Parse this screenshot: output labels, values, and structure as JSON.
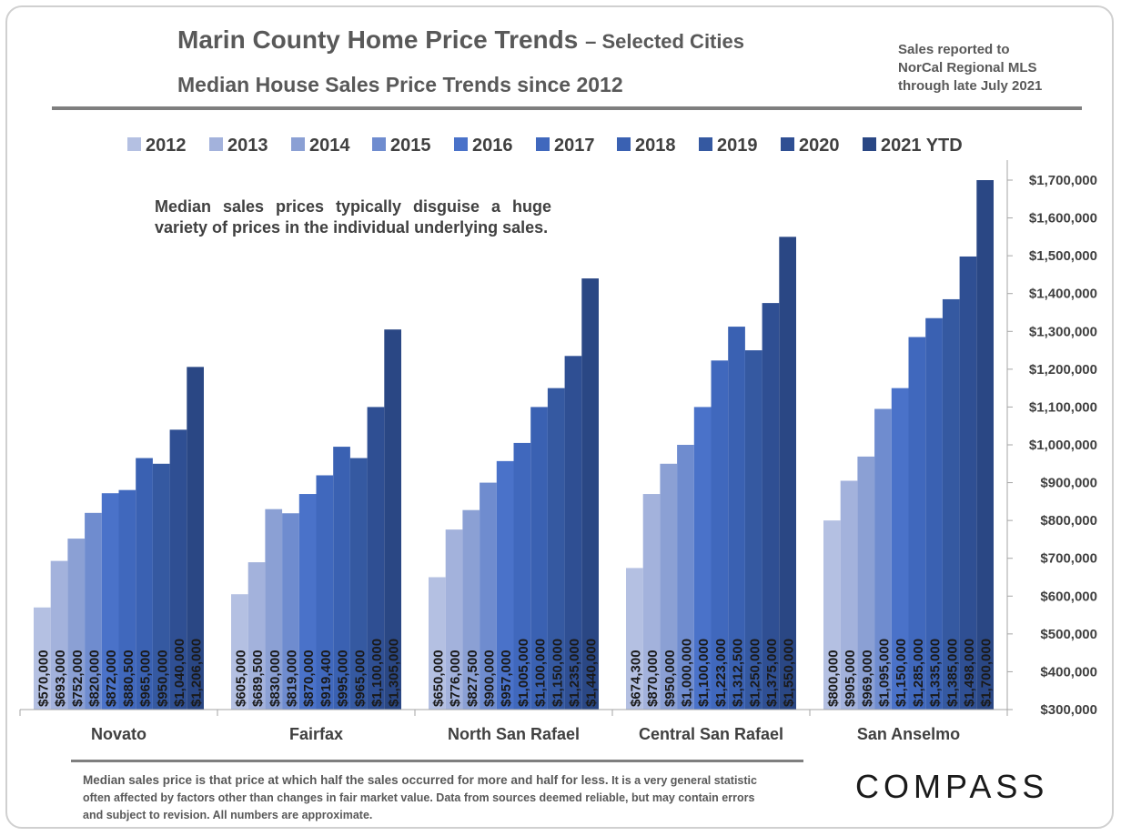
{
  "header": {
    "title": "Marin County Home Price Trends",
    "title_suffix": "– Selected Cities",
    "subtitle": "Median House Sales Price Trends since 2012",
    "source_note": [
      "Sales reported to",
      "NorCal Regional MLS",
      "through late July 2021"
    ]
  },
  "annotation": "Median sales prices typically disguise a huge variety of prices in the individual underlying sales.",
  "footnote": {
    "lead": "Median sales price is that price at which half the sales occurred for more and half for less.",
    "rest": " It is a very general statistic often affected by factors other than changes in fair market value. Data from sources deemed reliable, but may contain errors and subject to revision. All numbers are approximate."
  },
  "logo": {
    "text": "COMPASS"
  },
  "chart_data": {
    "type": "bar",
    "title": "Median House Sales Price Trends since 2012",
    "categories": [
      "Novato",
      "Fairfax",
      "North San Rafael",
      "Central San Rafael",
      "San Anselmo"
    ],
    "legend_position": "top",
    "y_axis_position": "right",
    "ylim": [
      300000,
      1700000
    ],
    "y_ticks": [
      300000,
      400000,
      500000,
      600000,
      700000,
      800000,
      900000,
      1000000,
      1100000,
      1200000,
      1300000,
      1400000,
      1500000,
      1600000,
      1700000
    ],
    "y_tick_labels": [
      "$300,000",
      "$400,000",
      "$500,000",
      "$600,000",
      "$700,000",
      "$800,000",
      "$900,000",
      "$1,000,000",
      "$1,100,000",
      "$1,200,000",
      "$1,300,000",
      "$1,400,000",
      "$1,500,000",
      "$1,600,000",
      "$1,700,000"
    ],
    "grid": false,
    "series": [
      {
        "name": "2012",
        "color": "#b4c0e2",
        "values": [
          570000,
          605000,
          650000,
          674300,
          800000
        ],
        "labels": [
          "$570,000",
          "$605,000",
          "$650,000",
          "$674,300",
          "$800,000"
        ]
      },
      {
        "name": "2013",
        "color": "#a3b2dc",
        "values": [
          693000,
          689500,
          776000,
          870000,
          905000
        ],
        "labels": [
          "$693,000",
          "$689,500",
          "$776,000",
          "$870,000",
          "$905,000"
        ]
      },
      {
        "name": "2014",
        "color": "#8ba0d4",
        "values": [
          752000,
          830000,
          827500,
          950000,
          969000
        ],
        "labels": [
          "$752,000",
          "$830,000",
          "$827,500",
          "$950,000",
          "$969,000"
        ]
      },
      {
        "name": "2015",
        "color": "#6f8ccf",
        "values": [
          820000,
          819000,
          900000,
          1000000,
          1095000
        ],
        "labels": [
          "$820,000",
          "$819,000",
          "$900,000",
          "$1,000,000",
          "$1,095,000"
        ]
      },
      {
        "name": "2016",
        "color": "#4a72c9",
        "values": [
          872000,
          870000,
          957000,
          1100000,
          1150000
        ],
        "labels": [
          "$872,000",
          "$870,000",
          "$957,000",
          "$1,100,000",
          "$1,150,000"
        ]
      },
      {
        "name": "2017",
        "color": "#4068bd",
        "values": [
          880500,
          919400,
          1005000,
          1223000,
          1285000
        ],
        "labels": [
          "$880,500",
          "$919,400",
          "$1,005,000",
          "$1,223,000",
          "$1,285,000"
        ]
      },
      {
        "name": "2018",
        "color": "#3a61b2",
        "values": [
          965000,
          995000,
          1100000,
          1312500,
          1335000
        ],
        "labels": [
          "$965,000",
          "$995,000",
          "$1,100,000",
          "$1,312,500",
          "$1,335,000"
        ]
      },
      {
        "name": "2019",
        "color": "#3559a1",
        "values": [
          950000,
          965000,
          1150000,
          1250000,
          1385000
        ],
        "labels": [
          "$950,000",
          "$965,000",
          "$1,150,000",
          "$1,250,000",
          "$1,385,000"
        ]
      },
      {
        "name": "2020",
        "color": "#2f4f93",
        "values": [
          1040000,
          1100000,
          1235000,
          1375000,
          1498000
        ],
        "labels": [
          "$1,040,000",
          "$1,100,000",
          "$1,235,000",
          "$1,375,000",
          "$1,498,000"
        ]
      },
      {
        "name": "2021 YTD",
        "color": "#2a4784",
        "values": [
          1206000,
          1305000,
          1440000,
          1550000,
          1700000
        ],
        "labels": [
          "$1,206,000",
          "$1,305,000",
          "$1,440,000",
          "$1,550,000",
          "$1,700,000"
        ]
      }
    ]
  }
}
